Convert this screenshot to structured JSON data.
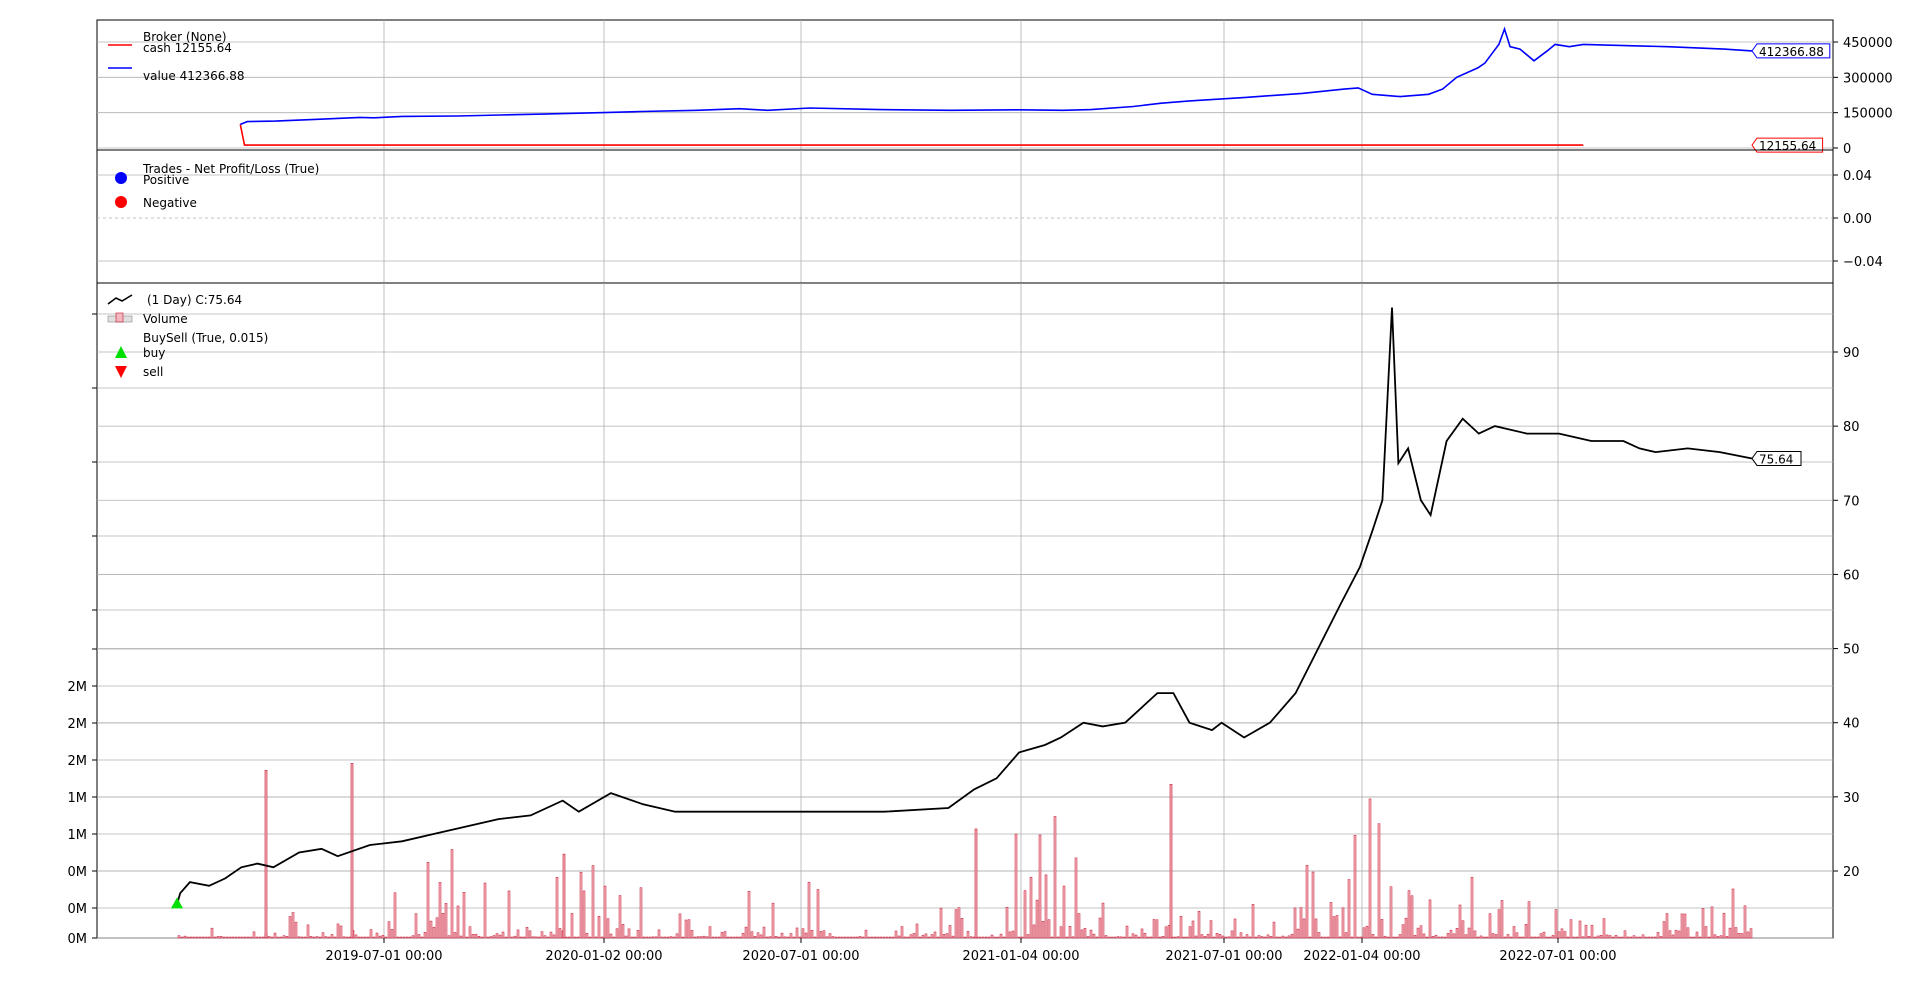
{
  "chart_data": [
    {
      "type": "line",
      "panel": "broker",
      "legend_title": "Broker (None)",
      "yticks": [
        "450000",
        "300000",
        "150000",
        "0"
      ],
      "ylim": [
        0,
        450000
      ],
      "grid": true,
      "legend_position": "top-left",
      "series": [
        {
          "name": "cash 12155.64",
          "color": "#ff0000",
          "last_value": 12155.64,
          "last_label": "12155.64",
          "points": [
            [
              0.045,
              100000
            ],
            [
              0.048,
              12155.64
            ],
            [
              1.0,
              12155.64
            ]
          ]
        },
        {
          "name": "value 412366.88",
          "color": "#0000ff",
          "last_value": 412366.88,
          "last_label": "412366.88",
          "points": [
            [
              0.045,
              100000
            ],
            [
              0.05,
              112000
            ],
            [
              0.07,
              114000
            ],
            [
              0.1,
              122000
            ],
            [
              0.13,
              130000
            ],
            [
              0.14,
              128000
            ],
            [
              0.16,
              134000
            ],
            [
              0.2,
              136000
            ],
            [
              0.23,
              140000
            ],
            [
              0.26,
              144000
            ],
            [
              0.3,
              150000
            ],
            [
              0.33,
              155000
            ],
            [
              0.37,
              160000
            ],
            [
              0.4,
              167000
            ],
            [
              0.42,
              160000
            ],
            [
              0.45,
              170000
            ],
            [
              0.5,
              163000
            ],
            [
              0.55,
              160000
            ],
            [
              0.6,
              162000
            ],
            [
              0.63,
              160000
            ],
            [
              0.65,
              163000
            ],
            [
              0.68,
              176000
            ],
            [
              0.7,
              190000
            ],
            [
              0.72,
              200000
            ],
            [
              0.76,
              215000
            ],
            [
              0.8,
              232000
            ],
            [
              0.83,
              250000
            ],
            [
              0.84,
              255000
            ],
            [
              0.85,
              228000
            ],
            [
              0.87,
              218000
            ],
            [
              0.89,
              228000
            ],
            [
              0.9,
              250000
            ],
            [
              0.91,
              300000
            ],
            [
              0.925,
              340000
            ],
            [
              0.93,
              360000
            ],
            [
              0.935,
              400000
            ],
            [
              0.94,
              440000
            ],
            [
              0.944,
              505000
            ],
            [
              0.948,
              430000
            ],
            [
              0.955,
              420000
            ],
            [
              0.965,
              370000
            ],
            [
              0.975,
              415000
            ],
            [
              0.98,
              440000
            ],
            [
              0.99,
              430000
            ],
            [
              1.0,
              440000
            ],
            [
              1.06,
              430000
            ],
            [
              1.1,
              420000
            ],
            [
              1.12,
              412366.88
            ]
          ]
        }
      ]
    },
    {
      "type": "scatter",
      "panel": "trades",
      "legend_title": "Trades - Net Profit/Loss (True)",
      "yticks": [
        "0.04",
        "0.00",
        "−0.04"
      ],
      "ylim": [
        -0.06,
        0.06
      ],
      "grid": true,
      "legend_position": "top-left",
      "series": [
        {
          "name": "Positive",
          "color": "#0000ff",
          "values": []
        },
        {
          "name": "Negative",
          "color": "#ff0000",
          "values": []
        }
      ]
    },
    {
      "type": "line",
      "panel": "price",
      "legend_entries": [
        {
          "label": "(1 Day) C:75.64",
          "color": "#000000",
          "kind": "line"
        },
        {
          "label": "Volume",
          "color": "#e8a0a8",
          "kind": "bar"
        },
        {
          "label": "BuySell (True, 0.015)",
          "kind": "title"
        },
        {
          "label": "buy",
          "color": "#00e000",
          "kind": "up"
        },
        {
          "label": "sell",
          "color": "#ff0000",
          "kind": "down"
        }
      ],
      "xticks": [
        "2019-07-01 00:00",
        "2020-01-02 00:00",
        "2020-07-01 00:00",
        "2021-01-04 00:00",
        "2021-07-01 00:00",
        "2022-01-04 00:00",
        "2022-07-01 00:00"
      ],
      "yticks_right": [
        "90",
        "80",
        "70",
        "60",
        "50",
        "40",
        "30",
        "20"
      ],
      "yticks_left": [
        "2M",
        "2M",
        "2M",
        "1M",
        "1M",
        "0M",
        "0M",
        "0M"
      ],
      "ylim": [
        10,
        100
      ],
      "grid": true,
      "legend_position": "top-left",
      "close_last": 75.64,
      "close_last_label": "75.64",
      "close": [
        [
          2019.0,
          15.5
        ],
        [
          2019.01,
          17.0
        ],
        [
          2019.04,
          18.5
        ],
        [
          2019.1,
          18.0
        ],
        [
          2019.15,
          19.0
        ],
        [
          2019.2,
          20.5
        ],
        [
          2019.25,
          21.0
        ],
        [
          2019.3,
          20.5
        ],
        [
          2019.38,
          22.5
        ],
        [
          2019.45,
          23.0
        ],
        [
          2019.5,
          22.0
        ],
        [
          2019.6,
          23.5
        ],
        [
          2019.7,
          24.0
        ],
        [
          2019.8,
          25.0
        ],
        [
          2019.9,
          26.0
        ],
        [
          2020.0,
          27.0
        ],
        [
          2020.1,
          27.5
        ],
        [
          2020.2,
          29.5
        ],
        [
          2020.25,
          28.0
        ],
        [
          2020.35,
          30.5
        ],
        [
          2020.45,
          29.0
        ],
        [
          2020.55,
          28.0
        ],
        [
          2020.7,
          28.0
        ],
        [
          2020.8,
          28.0
        ],
        [
          2021.0,
          28.0
        ],
        [
          2021.2,
          28.0
        ],
        [
          2021.4,
          28.5
        ],
        [
          2021.48,
          31.0
        ],
        [
          2021.55,
          32.5
        ],
        [
          2021.62,
          36.0
        ],
        [
          2021.7,
          37.0
        ],
        [
          2021.75,
          38.0
        ],
        [
          2021.82,
          40.0
        ],
        [
          2021.88,
          39.5
        ],
        [
          2021.95,
          40.0
        ],
        [
          2022.0,
          42.0
        ],
        [
          2022.05,
          44.0
        ],
        [
          2022.1,
          44.0
        ],
        [
          2022.15,
          40.0
        ],
        [
          2022.22,
          39.0
        ],
        [
          2022.25,
          40.0
        ],
        [
          2022.32,
          38.0
        ],
        [
          2022.4,
          40.0
        ],
        [
          2022.48,
          44.0
        ],
        [
          2022.55,
          50.0
        ],
        [
          2022.62,
          56.0
        ],
        [
          2022.68,
          61.0
        ],
        [
          2022.72,
          66.0
        ],
        [
          2022.75,
          70.0
        ],
        [
          2022.78,
          96.0
        ],
        [
          2022.8,
          75.0
        ],
        [
          2022.83,
          77.0
        ],
        [
          2022.87,
          70.0
        ],
        [
          2022.9,
          68.0
        ],
        [
          2022.95,
          78.0
        ],
        [
          2023.0,
          81.0
        ],
        [
          2023.05,
          79.0
        ],
        [
          2023.1,
          80.0
        ],
        [
          2023.2,
          79.0
        ],
        [
          2023.3,
          79.0
        ],
        [
          2023.4,
          78.0
        ],
        [
          2023.5,
          78.0
        ],
        [
          2023.55,
          77.0
        ],
        [
          2023.6,
          76.5
        ],
        [
          2023.7,
          77.0
        ],
        [
          2023.8,
          76.5
        ],
        [
          2023.9,
          75.64
        ]
      ],
      "volume_peaks_millions": [
        0.15,
        0.4,
        1.25,
        0.8,
        1.05,
        0.35,
        0.8,
        0.2,
        0.6,
        1.7,
        0.4,
        0.5,
        2.05,
        0.9,
        0.6,
        0.3,
        0.7
      ],
      "buy_markers": [
        [
          2019.0,
          15.5
        ]
      ]
    }
  ]
}
